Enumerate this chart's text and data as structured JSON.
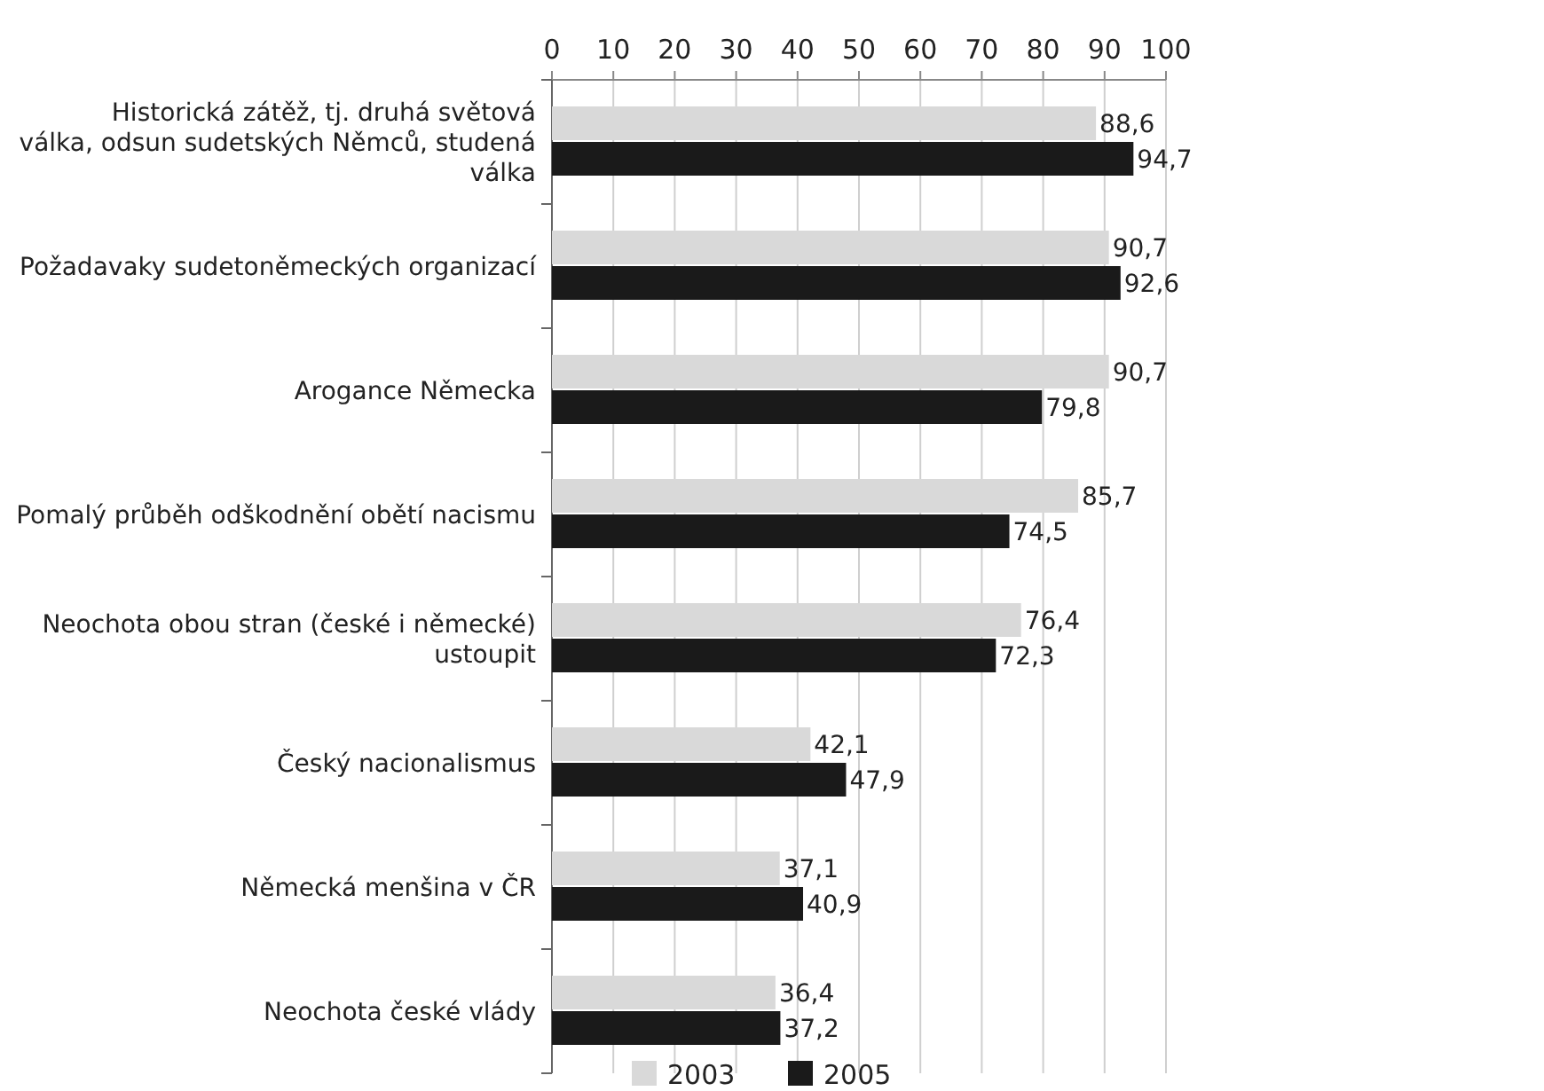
{
  "chart_data": {
    "type": "bar",
    "orientation": "horizontal",
    "categories": [
      "Historická zátěž, tj. druhá světová válka, odsun sudetských Němců, studená válka",
      "Požadavaky sudetoněmeckých organizací",
      "Arogance Německa",
      "Pomalý průběh odškodnění obětí nacismu",
      "Neochota obou stran (české i německé) ustoupit",
      "Český nacionalismus",
      "Německá menšina v ČR",
      "Neochota české vlády"
    ],
    "series": [
      {
        "name": "2003",
        "color": "#d9d9d9",
        "values": [
          88.6,
          90.7,
          90.7,
          85.7,
          76.4,
          42.1,
          37.1,
          36.4
        ],
        "value_labels": [
          "88,6",
          "90,7",
          "90,7",
          "85,7",
          "76,4",
          "42,1",
          "37,1",
          "36,4"
        ]
      },
      {
        "name": "2005",
        "color": "#1a1a1a",
        "values": [
          94.7,
          92.6,
          79.8,
          74.5,
          72.3,
          47.9,
          40.9,
          37.2
        ],
        "value_labels": [
          "94,7",
          "92,6",
          "79,8",
          "74,5",
          "72,3",
          "47,9",
          "40,9",
          "37,2"
        ]
      }
    ],
    "xlim": [
      0,
      100
    ],
    "xticks": [
      0,
      10,
      20,
      30,
      40,
      50,
      60,
      70,
      80,
      90,
      100
    ],
    "grid": "x",
    "legend": "bottom"
  }
}
